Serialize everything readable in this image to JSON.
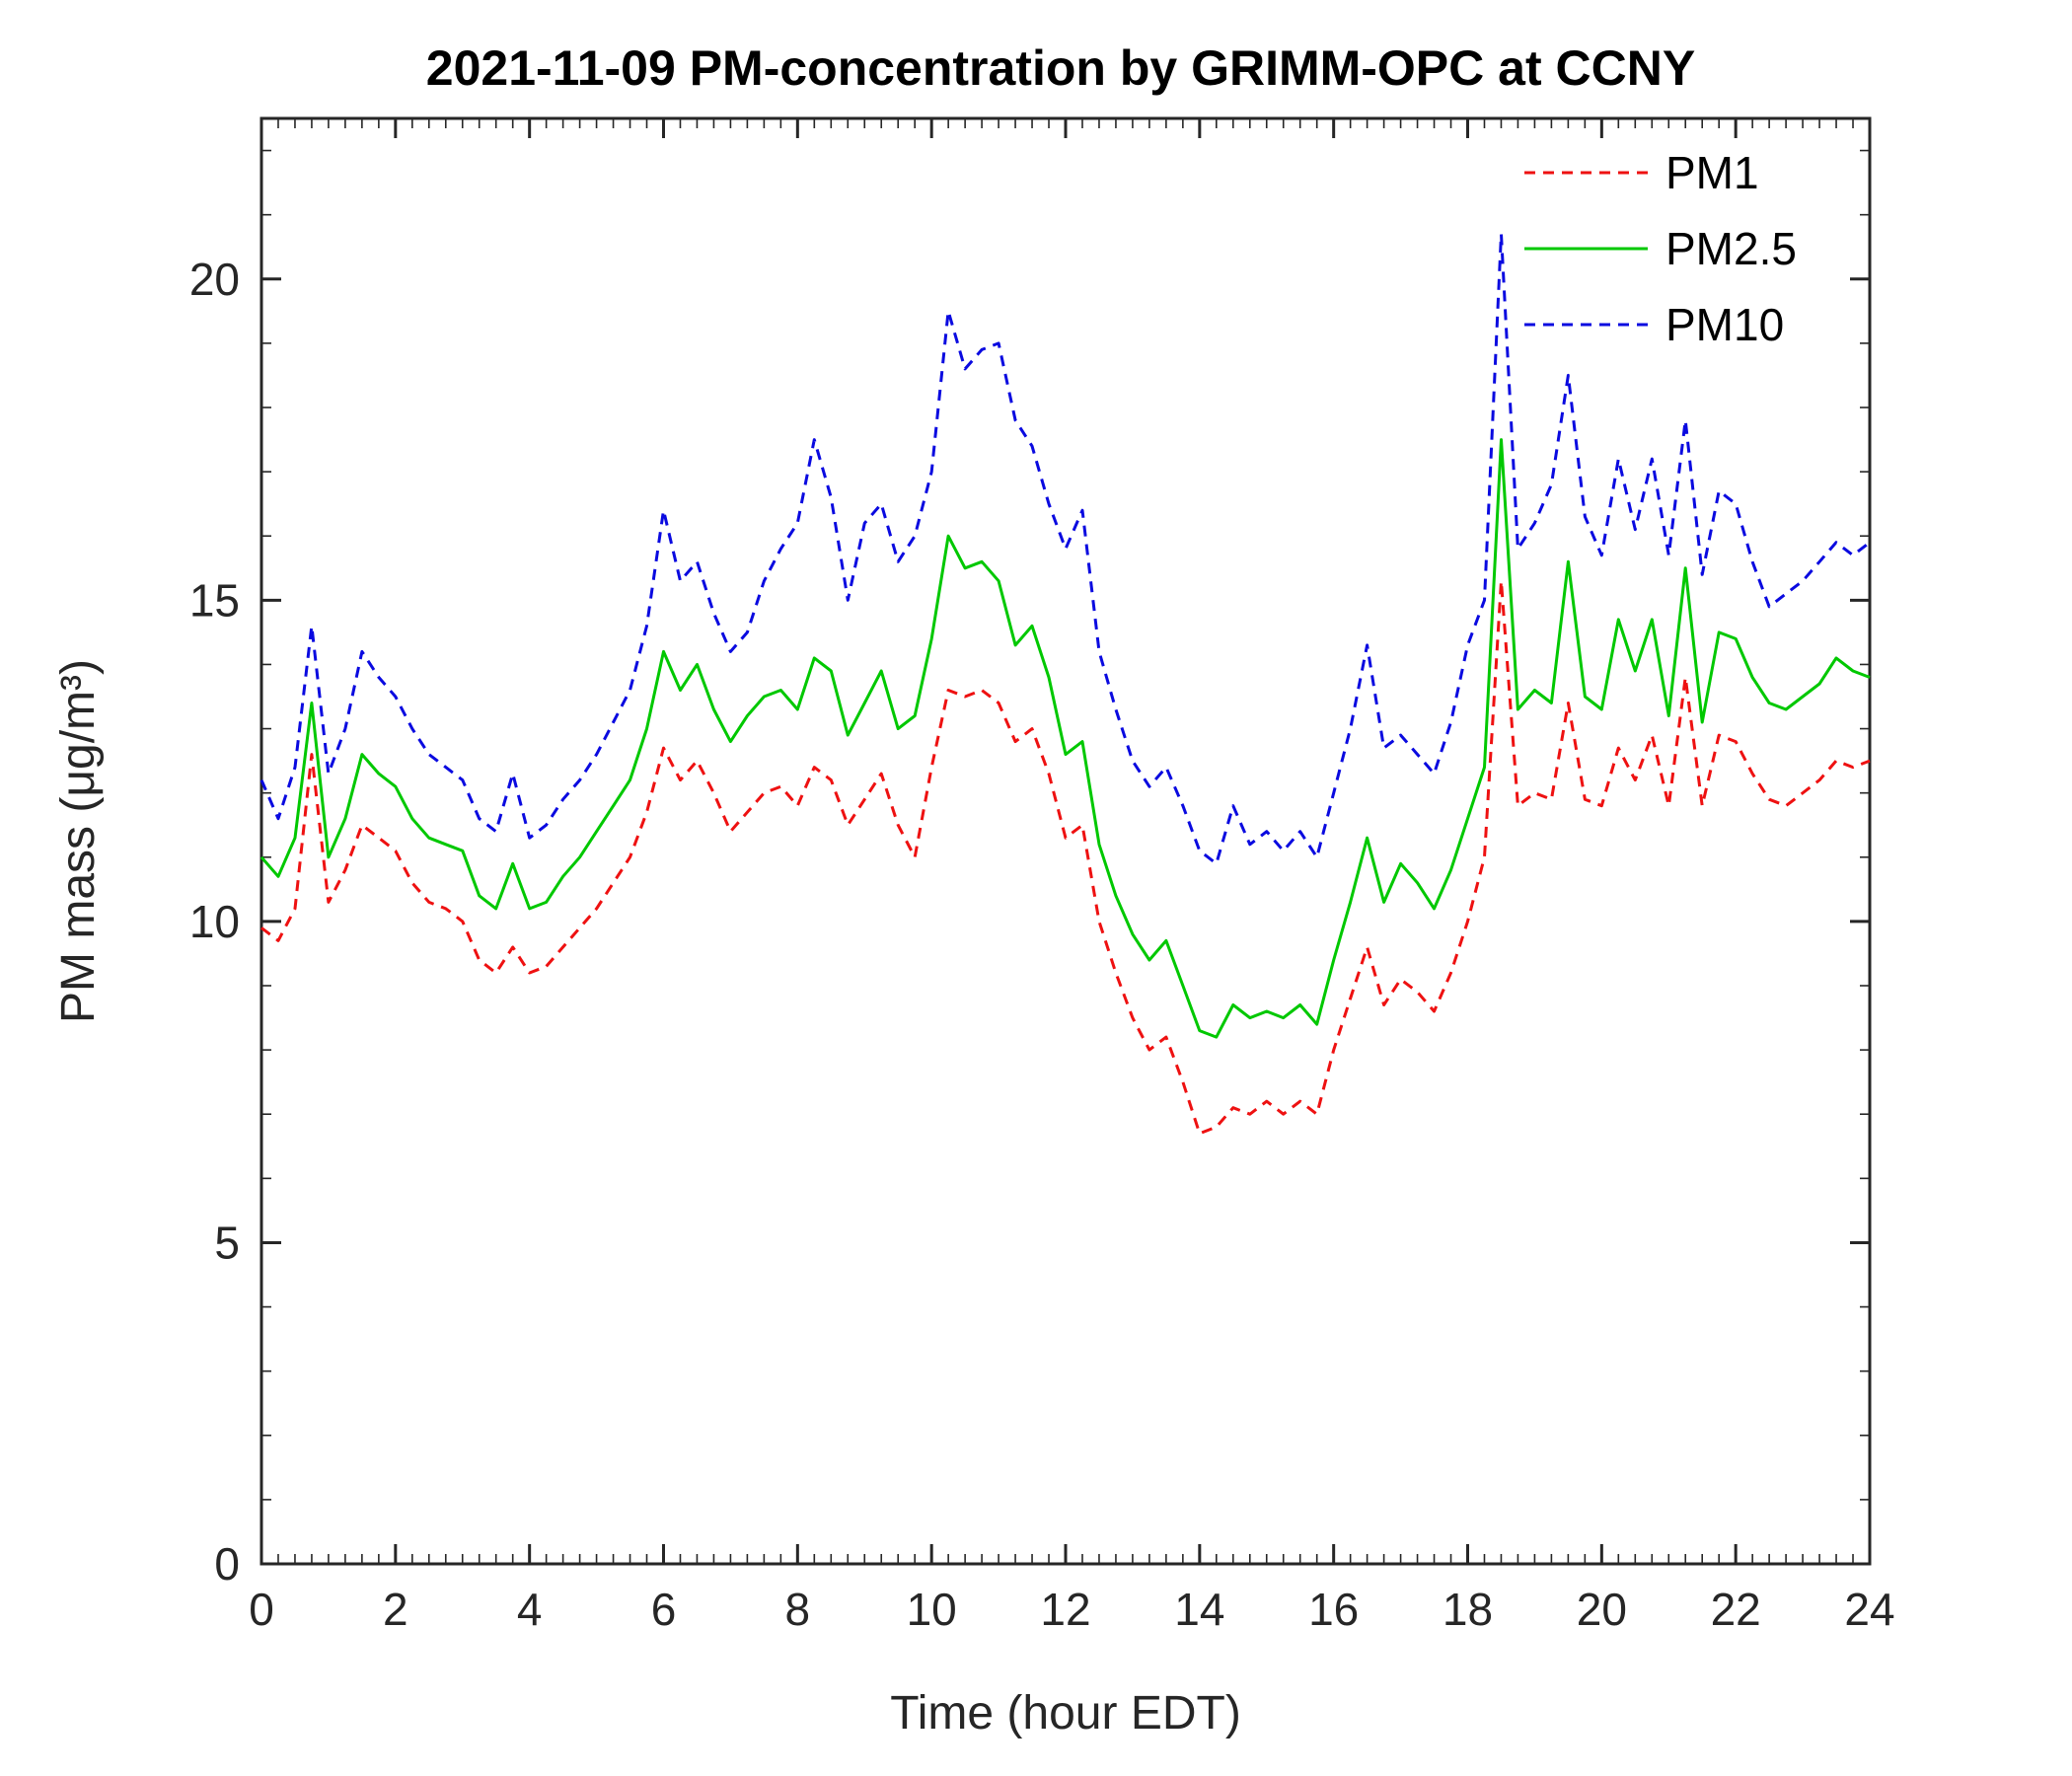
{
  "figure": {
    "title": "2021-11-09 PM-concentration by GRIMM-OPC at CCNY"
  },
  "chart_data": {
    "type": "line",
    "title": "2021-11-09 PM-concentration by GRIMM-OPC at CCNY",
    "xlabel": "Time (hour EDT)",
    "ylabel": "PM mass (μg/m³)",
    "xlim": [
      0,
      24
    ],
    "ylim": [
      0,
      22.5
    ],
    "xticks": [
      0,
      2,
      4,
      6,
      8,
      10,
      12,
      14,
      16,
      18,
      20,
      22,
      24
    ],
    "yticks": [
      0,
      5,
      10,
      15,
      20
    ],
    "x_minor_step": 0.25,
    "y_minor_step": 1,
    "grid": false,
    "legend_position": "northeast",
    "axis_color": "#262626",
    "x": [
      0,
      0.25,
      0.5,
      0.75,
      1,
      1.25,
      1.5,
      1.75,
      2,
      2.25,
      2.5,
      2.75,
      3,
      3.25,
      3.5,
      3.75,
      4,
      4.25,
      4.5,
      4.75,
      5,
      5.25,
      5.5,
      5.75,
      6,
      6.25,
      6.5,
      6.75,
      7,
      7.25,
      7.5,
      7.75,
      8,
      8.25,
      8.5,
      8.75,
      9,
      9.25,
      9.5,
      9.75,
      10,
      10.25,
      10.5,
      10.75,
      11,
      11.25,
      11.5,
      11.75,
      12,
      12.25,
      12.5,
      12.75,
      13,
      13.25,
      13.5,
      13.75,
      14,
      14.25,
      14.5,
      14.75,
      15,
      15.25,
      15.5,
      15.75,
      16,
      16.25,
      16.5,
      16.75,
      17,
      17.25,
      17.5,
      17.75,
      18,
      18.25,
      18.5,
      18.75,
      19,
      19.25,
      19.5,
      19.75,
      20,
      20.25,
      20.5,
      20.75,
      21,
      21.25,
      21.5,
      21.75,
      22,
      22.25,
      22.5,
      22.75,
      23,
      23.25,
      23.5,
      23.75,
      24
    ],
    "series": [
      {
        "name": "PM1",
        "color": "#ee1111",
        "line_style": "dashed",
        "values": [
          9.9,
          9.7,
          10.2,
          12.6,
          10.3,
          10.8,
          11.5,
          11.3,
          11.1,
          10.6,
          10.3,
          10.2,
          10.0,
          9.4,
          9.2,
          9.6,
          9.2,
          9.3,
          9.6,
          9.9,
          10.2,
          10.6,
          11.0,
          11.7,
          12.7,
          12.2,
          12.5,
          12.0,
          11.4,
          11.7,
          12.0,
          12.1,
          11.8,
          12.4,
          12.2,
          11.5,
          11.9,
          12.3,
          11.5,
          11.0,
          12.4,
          13.6,
          13.5,
          13.6,
          13.4,
          12.8,
          13.0,
          12.3,
          11.3,
          11.5,
          10.0,
          9.2,
          8.5,
          8.0,
          8.2,
          7.5,
          6.7,
          6.8,
          7.1,
          7.0,
          7.2,
          7.0,
          7.2,
          7.0,
          8.0,
          8.8,
          9.6,
          8.7,
          9.1,
          8.9,
          8.6,
          9.2,
          10.0,
          11.0,
          15.3,
          11.8,
          12.0,
          11.9,
          13.4,
          11.9,
          11.8,
          12.7,
          12.2,
          12.9,
          11.8,
          13.8,
          11.8,
          12.9,
          12.8,
          12.3,
          11.9,
          11.8,
          12.0,
          12.2,
          12.5,
          12.4,
          12.5
        ]
      },
      {
        "name": "PM2.5",
        "color": "#00c800",
        "line_style": "solid",
        "values": [
          11.0,
          10.7,
          11.3,
          13.4,
          11.0,
          11.6,
          12.6,
          12.3,
          12.1,
          11.6,
          11.3,
          11.2,
          11.1,
          10.4,
          10.2,
          10.9,
          10.2,
          10.3,
          10.7,
          11.0,
          11.4,
          11.8,
          12.2,
          13.0,
          14.2,
          13.6,
          14.0,
          13.3,
          12.8,
          13.2,
          13.5,
          13.6,
          13.3,
          14.1,
          13.9,
          12.9,
          13.4,
          13.9,
          13.0,
          13.2,
          14.4,
          16.0,
          15.5,
          15.6,
          15.3,
          14.3,
          14.6,
          13.8,
          12.6,
          12.8,
          11.2,
          10.4,
          9.8,
          9.4,
          9.7,
          9.0,
          8.3,
          8.2,
          8.7,
          8.5,
          8.6,
          8.5,
          8.7,
          8.4,
          9.4,
          10.3,
          11.3,
          10.3,
          10.9,
          10.6,
          10.2,
          10.8,
          11.6,
          12.4,
          17.5,
          13.3,
          13.6,
          13.4,
          15.6,
          13.5,
          13.3,
          14.7,
          13.9,
          14.7,
          13.2,
          15.5,
          13.1,
          14.5,
          14.4,
          13.8,
          13.4,
          13.3,
          13.5,
          13.7,
          14.1,
          13.9,
          13.8
        ]
      },
      {
        "name": "PM10",
        "color": "#0a0ae0",
        "line_style": "dashed",
        "values": [
          12.2,
          11.6,
          12.4,
          14.6,
          12.3,
          13.0,
          14.2,
          13.8,
          13.5,
          13.0,
          12.6,
          12.4,
          12.2,
          11.6,
          11.4,
          12.3,
          11.3,
          11.5,
          11.9,
          12.2,
          12.6,
          13.1,
          13.6,
          14.6,
          16.4,
          15.3,
          15.6,
          14.8,
          14.2,
          14.5,
          15.3,
          15.8,
          16.2,
          17.5,
          16.6,
          15.0,
          16.2,
          16.5,
          15.6,
          16.0,
          17.0,
          19.5,
          18.6,
          18.9,
          19.0,
          17.8,
          17.4,
          16.5,
          15.8,
          16.4,
          14.2,
          13.3,
          12.5,
          12.1,
          12.4,
          11.8,
          11.1,
          10.9,
          11.8,
          11.2,
          11.4,
          11.1,
          11.4,
          11.0,
          12.0,
          13.0,
          14.3,
          12.7,
          12.9,
          12.6,
          12.3,
          13.1,
          14.3,
          15.0,
          20.7,
          15.8,
          16.2,
          16.8,
          18.5,
          16.3,
          15.7,
          17.2,
          16.1,
          17.2,
          15.7,
          17.8,
          15.4,
          16.7,
          16.5,
          15.6,
          14.9,
          15.1,
          15.3,
          15.6,
          15.9,
          15.7,
          15.9
        ]
      }
    ]
  }
}
